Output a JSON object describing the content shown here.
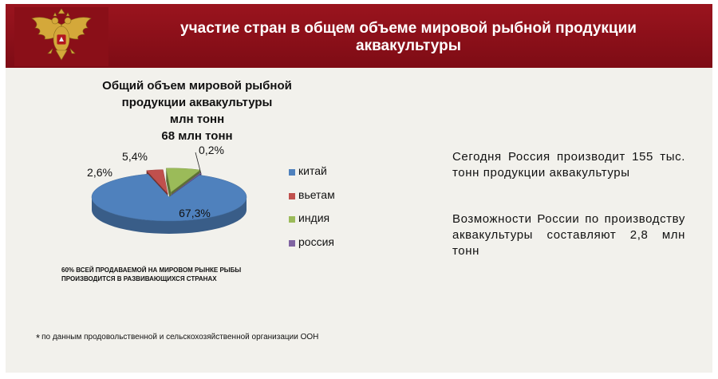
{
  "header": {
    "title_line1": "участие стран в общем объеме мировой рыбной продукции",
    "title_line2": "аквакультуры",
    "emblem_icon": "russian-coat-of-arms-icon"
  },
  "chart_title": {
    "line1": "Общий объем мировой рыбной",
    "line2": "продукции аквакультуры",
    "line3": "млн тонн",
    "line4": "68 млн тонн"
  },
  "chart_data": {
    "type": "pie",
    "title": "Общий объем мировой рыбной продукции аквакультуры млн тонн 68 млн тонн",
    "categories": [
      "китай",
      "вьетам",
      "индия",
      "россия"
    ],
    "values": [
      67.3,
      2.6,
      5.4,
      0.2
    ],
    "labels": [
      "67,3%",
      "2,6%",
      "5,4%",
      "0,2%"
    ],
    "colors": [
      "#4f81bd",
      "#c0504d",
      "#9bbb59",
      "#8064a2"
    ],
    "style": "3d-pie",
    "legend_position": "right"
  },
  "legend": [
    {
      "label": "китай",
      "color": "#4f81bd"
    },
    {
      "label": "вьетам",
      "color": "#c0504d"
    },
    {
      "label": "индия",
      "color": "#9bbb59"
    },
    {
      "label": "россия",
      "color": "#8064a2"
    }
  ],
  "footnote_caps": {
    "line1": "60% ВСЕЙ ПРОДАВАЕМОЙ НА МИРОВОМ РЫНКЕ РЫБЫ",
    "line2": "ПРОИЗВОДИТСЯ В РАЗВИВАЮЩИХСЯ СТРАНАХ"
  },
  "source_note": {
    "marker": "*",
    "text": "по данным продовольственной и сельскохозяйственной организации ООН"
  },
  "info": {
    "paragraph1": "Сегодня Россия производит 155 тыс. тонн продукции аквакультуры",
    "paragraph2": "Возможности России по производству аквакультуры составляют 2,8 млн тонн"
  }
}
